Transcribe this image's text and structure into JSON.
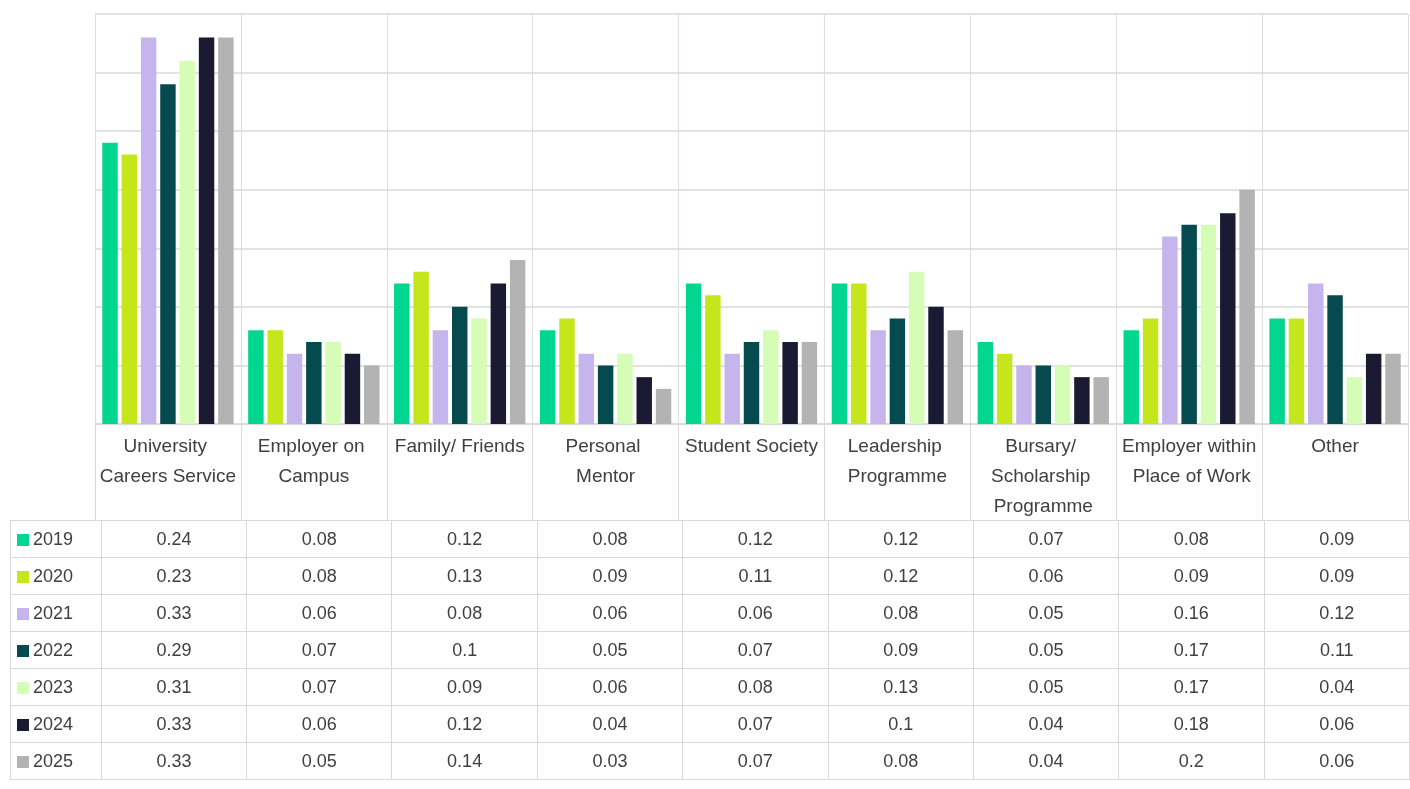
{
  "chart_data": {
    "type": "bar",
    "categories": [
      "University Careers Service",
      "Employer on Campus",
      "Family/ Friends",
      "Personal Mentor",
      "Student Society",
      "Leadership Programme",
      "Bursary/ Scholarship Programme",
      "Employer within Place of Work",
      "Other"
    ],
    "series": [
      {
        "name": "2019",
        "color": "#00d68f",
        "values": [
          0.24,
          0.08,
          0.12,
          0.08,
          0.12,
          0.12,
          0.07,
          0.08,
          0.09
        ]
      },
      {
        "name": "2020",
        "color": "#c4e61a",
        "values": [
          0.23,
          0.08,
          0.13,
          0.09,
          0.11,
          0.12,
          0.06,
          0.09,
          0.09
        ]
      },
      {
        "name": "2021",
        "color": "#c5b5ec",
        "values": [
          0.33,
          0.06,
          0.08,
          0.06,
          0.06,
          0.08,
          0.05,
          0.16,
          0.12
        ]
      },
      {
        "name": "2022",
        "color": "#054a4f",
        "values": [
          0.29,
          0.07,
          0.1,
          0.05,
          0.07,
          0.09,
          0.05,
          0.17,
          0.11
        ]
      },
      {
        "name": "2023",
        "color": "#d5fdb5",
        "values": [
          0.31,
          0.07,
          0.09,
          0.06,
          0.08,
          0.13,
          0.05,
          0.17,
          0.04
        ]
      },
      {
        "name": "2024",
        "color": "#1b1a33",
        "values": [
          0.33,
          0.06,
          0.12,
          0.04,
          0.07,
          0.1,
          0.04,
          0.18,
          0.06
        ]
      },
      {
        "name": "2025",
        "color": "#b3b3b3",
        "values": [
          0.33,
          0.05,
          0.14,
          0.03,
          0.07,
          0.08,
          0.04,
          0.2,
          0.06
        ]
      }
    ],
    "ylim": [
      0,
      0.35
    ],
    "yticks": [
      {
        "value": 0,
        "label": null
      },
      {
        "value": 0.05,
        "label": null
      },
      {
        "value": 0.1,
        "label": null
      },
      {
        "value": 0.15,
        "label": null
      },
      {
        "value": 0.2,
        "label": null
      },
      {
        "value": 0.25,
        "label": null
      },
      {
        "value": 0.3,
        "label": null
      },
      {
        "value": 0.35,
        "label": null
      }
    ],
    "grid": true,
    "tick_labels": "x",
    "legend": "bottom left",
    "data_labels": true
  }
}
